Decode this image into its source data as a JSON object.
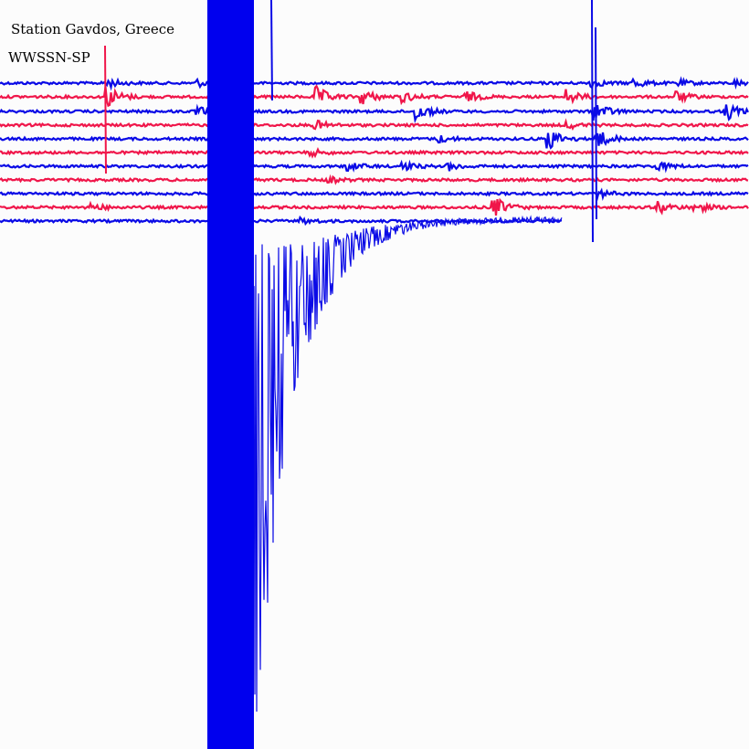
{
  "header": {
    "title": "Station Gavdos, Greece",
    "subtitle": "WWSSN-SP"
  }
}
